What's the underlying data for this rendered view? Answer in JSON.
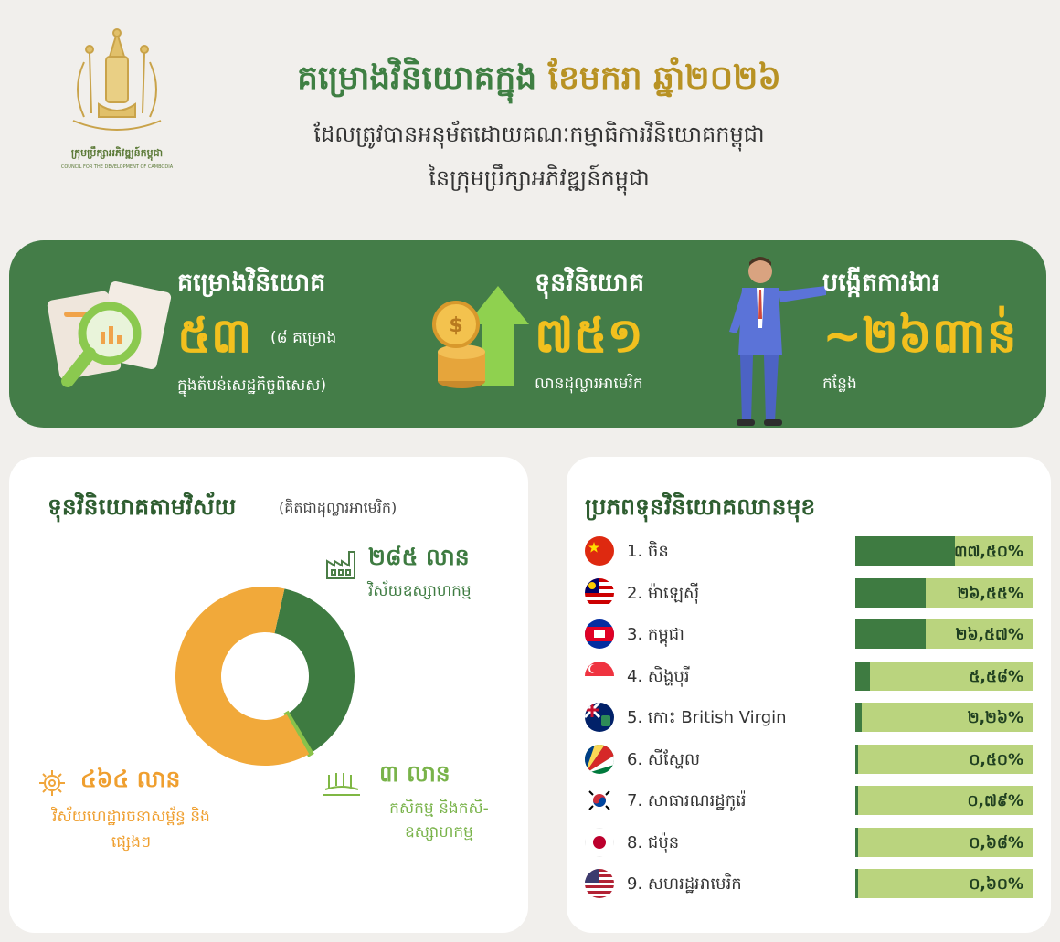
{
  "header": {
    "emblem_name": "ក្រុមប្រឹក្សាអភិវឌ្ឍន៍កម្ពុជា",
    "emblem_sub": "COUNCIL FOR THE DEVELOPMENT OF CAMBODIA",
    "title_part1": "គម្រោងវិនិយោគក្នុង",
    "title_part2": "ខែមករា ឆ្នាំ២០២៦",
    "subtitle_line1": "ដែលត្រូវបានអនុម័តដោយគណៈកម្មាធិការវិនិយោគកម្ពុជា",
    "subtitle_line2": "នៃក្រុមប្រឹក្សាអភិវឌ្ឍន៍កម្ពុជា"
  },
  "stats": {
    "projects": {
      "title": "គម្រោងវិនិយោគ",
      "value": "៥៣",
      "note": "(៨ គម្រោង",
      "note2": "ក្នុងតំបន់សេដ្ឋកិច្ចពិសេស)"
    },
    "capital": {
      "title": "ទុនវិនិយោគ",
      "value": "៧៥១",
      "unit": "លានដុល្លារអាមេរិក"
    },
    "jobs": {
      "title": "បង្កើតការងារ",
      "value": "~២៦៣ាន់",
      "unit": "កន្លែង"
    }
  },
  "sector_card": {
    "title": "ទុនវិនិយោគតាមវិស័យ",
    "title_unit": "(គិតជាដុល្លារអាមេរិក)"
  },
  "origin_card": {
    "title": "ប្រភពទុនវិនិយោគឈានមុខ"
  },
  "colors": {
    "green": "#3e7b41",
    "orange": "#f1a93a",
    "light_green": "#89c24a",
    "bar_bg": "#bad47e"
  },
  "chart_data": [
    {
      "type": "pie",
      "title": "ទុនវិនិយោគតាមវិស័យ",
      "unit_label": "(គិតជាដុល្លារអាមេរិក)",
      "slices": [
        {
          "label": "វិស័យឧស្សាហកម្ម",
          "value": 285,
          "value_label": "២៨៥ លាន",
          "color": "#3e7b41",
          "icon": "factory-icon"
        },
        {
          "label": "កសិកម្ម និងកសិ-ឧស្សាហកម្ម",
          "value": 3,
          "value_label": "៣ លាន",
          "color": "#89c24a",
          "icon": "agriculture-icon"
        },
        {
          "label": "វិស័យហេដ្ឋារចនាសម្ព័ន្ធ និងផ្សេងៗ",
          "value": 464,
          "value_label": "៤៦៤ លាន",
          "color": "#f1a93a",
          "icon": "infrastructure-icon"
        }
      ]
    },
    {
      "type": "bar",
      "title": "ប្រភពទុនវិនិយោគឈានមុខ",
      "categories": [
        "1. ចិន",
        "2. ម៉ាឡេស៊ី",
        "3. កម្ពុជា",
        "4. សិង្ហបុរី",
        "5. កោះ British Virgin",
        "6. សីស្ហែល",
        "7. សាធារណរដ្ឋកូរ៉េ",
        "8. ជប៉ុន",
        "9. សហរដ្ឋអាមេរិក"
      ],
      "values": [
        37.5,
        26.55,
        26.57,
        5.58,
        2.26,
        0.5,
        0.79,
        0.68,
        0.6
      ],
      "value_labels": [
        "៣៧,៥០%",
        "២៦,៥៥%",
        "២៦,៥៧%",
        "៥,៥៨%",
        "២,២៦%",
        "០,៥០%",
        "០,៧៩%",
        "០,៦៨%",
        "០,៦០%"
      ],
      "flags": [
        "china-flag-icon",
        "malaysia-flag-icon",
        "cambodia-flag-icon",
        "singapore-flag-icon",
        "bvi-flag-icon",
        "seychelles-flag-icon",
        "korea-flag-icon",
        "japan-flag-icon",
        "usa-flag-icon"
      ]
    }
  ]
}
